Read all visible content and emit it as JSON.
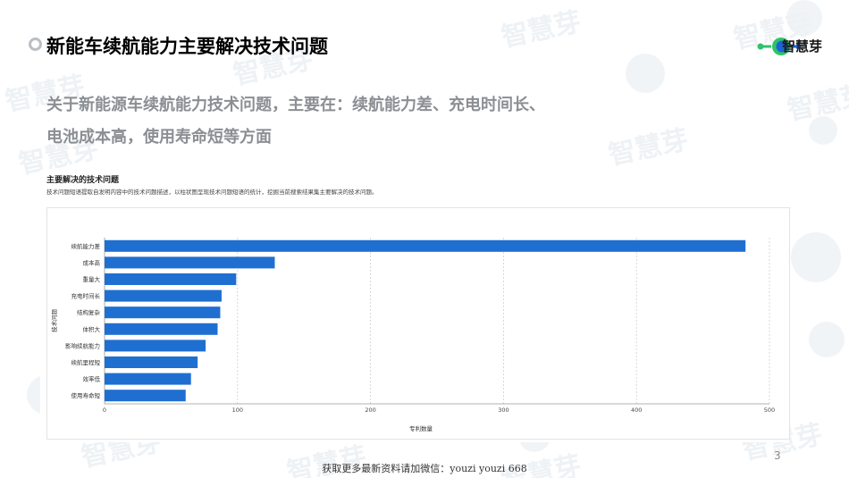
{
  "slide": {
    "title": "新能车续航能力主要解决技术问题",
    "summary_line1": "关于新能源车续航能力技术问题，主要在：续航能力差、充电时间长、",
    "summary_line2": "电池成本高，使用寿命短等方面",
    "page_number": "3",
    "footer": "获取更多最新资料请加微信：youzi youzi 668"
  },
  "logo": {
    "text": "智慧芽",
    "colors": [
      "#2ec36a",
      "#1e63d6"
    ],
    "watermark_text": "智慧芽"
  },
  "chart_header": {
    "heading": "主要解决的技术问题",
    "description": "技术问题短语提取自发明内容中的技术问题描述，以柱状图呈现技术问题短语的统计，挖掘当前搜索结果集主要解决的技术问题。"
  },
  "chart_data": {
    "type": "bar",
    "orientation": "horizontal",
    "categories": [
      "续航能力差",
      "成本高",
      "重量大",
      "充电时间长",
      "结构复杂",
      "体积大",
      "影响续航能力",
      "续航里程短",
      "效率低",
      "使用寿命短"
    ],
    "values": [
      482,
      128,
      99,
      88,
      87,
      85,
      76,
      70,
      65,
      61
    ],
    "xlabel": "专利数量",
    "ylabel": "技术问题",
    "xlim": [
      0,
      500
    ],
    "xticks": [
      0,
      100,
      200,
      300,
      400,
      500
    ],
    "grid": true,
    "bar_color": "#1f6fd1"
  }
}
